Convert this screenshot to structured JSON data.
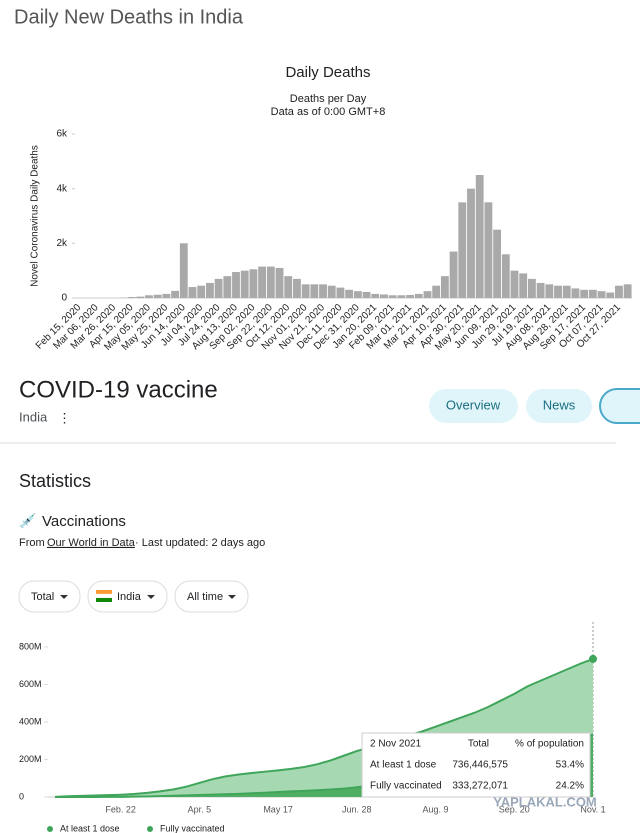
{
  "header": {
    "title": "Daily New Deaths in India"
  },
  "chart_data": [
    {
      "type": "bar",
      "title": "Daily Deaths",
      "subtitle": "Deaths per Day",
      "note": "Data as of 0:00 GMT+8",
      "ylabel": "Novel Coronavirus Daily Deaths",
      "color": "#a9a9a9",
      "categories": [
        "Feb 15, 2020",
        null,
        "Mar 06, 2020",
        null,
        "Mar 26, 2020",
        null,
        "Apr 15, 2020",
        null,
        "May 05, 2020",
        null,
        "May 25, 2020",
        null,
        "Jun 14, 2020",
        null,
        "Jul 04, 2020",
        null,
        "Jul 24, 2020",
        null,
        "Aug 13, 2020",
        null,
        "Sep 02, 2020",
        null,
        "Sep 22, 2020",
        null,
        "Oct 12, 2020",
        null,
        "Nov 01, 2020",
        null,
        "Nov 21, 2020",
        null,
        "Dec 11, 2020",
        null,
        "Dec 31, 2020",
        null,
        "Jan 20, 2021",
        null,
        "Feb 09, 2021",
        null,
        "Mar 01, 2021",
        null,
        "Mar 21, 2021",
        null,
        "Apr 10, 2021",
        null,
        "Apr 30, 2021",
        null,
        "May 20, 2021",
        null,
        "Jun 09, 2021",
        null,
        "Jun 29, 2021",
        null,
        "Jul 19, 2021",
        null,
        "Aug 08, 2021",
        null,
        "Aug 28, 2021",
        null,
        "Sep 17, 2021",
        null,
        "Oct 07, 2021",
        null,
        "Oct 27, 2021",
        null
      ],
      "values": [
        0,
        0,
        0,
        0,
        2,
        10,
        35,
        50,
        100,
        120,
        150,
        260,
        2003,
        400,
        450,
        550,
        700,
        800,
        950,
        1000,
        1050,
        1150,
        1150,
        1100,
        800,
        700,
        500,
        500,
        500,
        450,
        380,
        300,
        250,
        220,
        150,
        130,
        100,
        100,
        110,
        150,
        250,
        450,
        800,
        1700,
        3500,
        4000,
        4500,
        3500,
        2500,
        1600,
        1000,
        900,
        700,
        550,
        500,
        450,
        450,
        350,
        300,
        300,
        250,
        200,
        450,
        500
      ],
      "ylim": [
        0,
        6000
      ],
      "yticks": [
        0,
        {
          "value": 2000,
          "label": "2k"
        },
        {
          "value": 4000,
          "label": "4k"
        },
        {
          "value": 6000,
          "label": "6k"
        }
      ],
      "grid": false
    },
    {
      "type": "area",
      "categories": [
        null,
        null,
        null,
        null,
        null,
        "Feb. 22",
        null,
        null,
        null,
        null,
        null,
        "Apr. 5",
        null,
        null,
        null,
        null,
        null,
        "May 17",
        null,
        null,
        null,
        null,
        null,
        "Jun. 28",
        null,
        null,
        null,
        null,
        null,
        "Aug. 9",
        null,
        null,
        null,
        null,
        null,
        "Sep. 20",
        null,
        null,
        null,
        null,
        null,
        "Nov. 1"
      ],
      "series": [
        {
          "name": "At least 1 dose",
          "color": "#3fa55a",
          "fill": "#a6d9b1",
          "values": [
            0.5,
            4,
            6,
            8,
            10,
            12,
            16,
            22,
            30,
            40,
            55,
            75,
            95,
            110,
            120,
            128,
            135,
            142,
            150,
            160,
            175,
            195,
            220,
            245,
            265,
            290,
            310,
            330,
            350,
            375,
            400,
            425,
            450,
            480,
            515,
            550,
            590,
            620,
            650,
            680,
            710,
            736.4
          ]
        },
        {
          "name": "Fully vaccinated",
          "color": "#3fa55a",
          "fill": "#4fae62",
          "values": [
            0,
            0,
            0,
            0,
            0.5,
            1,
            2,
            3,
            5,
            7,
            9,
            11,
            13,
            15,
            17,
            20,
            23,
            27,
            30,
            33,
            36,
            40,
            45,
            52,
            60,
            70,
            80,
            90,
            100,
            112,
            125,
            140,
            155,
            170,
            185,
            205,
            225,
            245,
            265,
            290,
            310,
            333.3
          ]
        }
      ],
      "ylim": [
        0,
        800
      ],
      "yticks": [
        0,
        {
          "value": 200,
          "label": "200M"
        },
        {
          "value": 400,
          "label": "400M"
        },
        {
          "value": 600,
          "label": "600M"
        },
        {
          "value": 800,
          "label": "800M"
        }
      ],
      "grid": false,
      "legend": "bottom",
      "tooltip": {
        "date": "2 Nov 2021",
        "headers": [
          "Total",
          "% of population"
        ],
        "rows": [
          [
            "At least 1 dose",
            "736,446,575",
            "53.4%"
          ],
          [
            "Fully vaccinated",
            "333,272,071",
            "24.2%"
          ]
        ]
      }
    }
  ],
  "panel": {
    "title": "COVID-19 vaccine",
    "region": "India",
    "tabs": [
      "Overview",
      "News"
    ],
    "section": "Statistics",
    "subsection": "Vaccinations",
    "source_prefix": "From",
    "source": "Our World in Data",
    "updated": "· Last updated: 2 days ago",
    "filters": [
      "Total",
      "India",
      "All time"
    ]
  },
  "watermark": "YAPLAKAL.COM"
}
